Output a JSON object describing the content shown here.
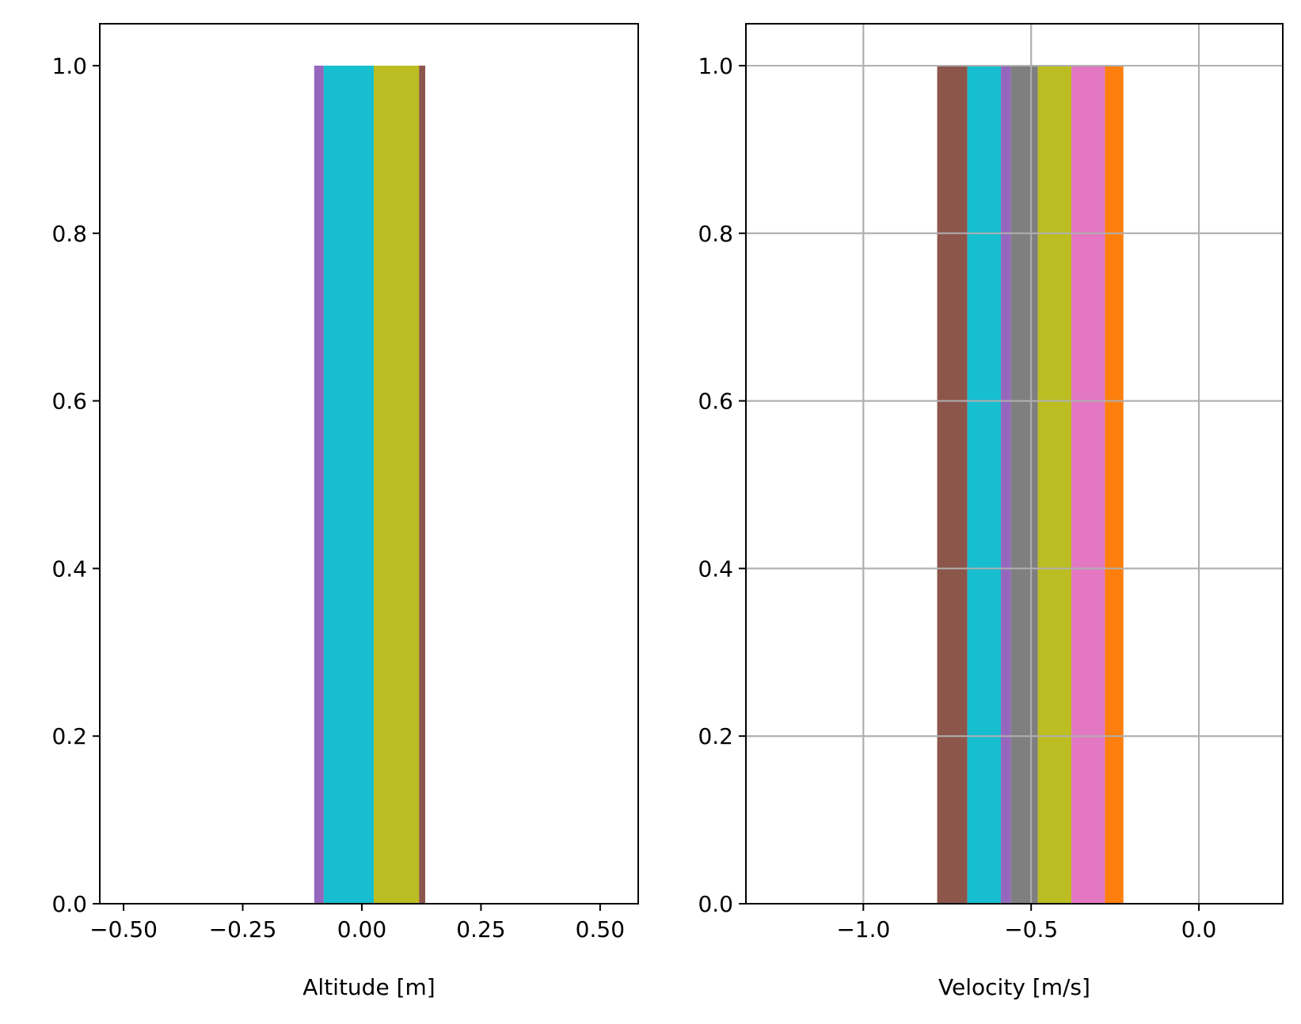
{
  "chart_data": [
    {
      "type": "bar",
      "xlabel": "Altitude [m]",
      "ylabel": "",
      "xlim": [
        -0.55,
        0.58
      ],
      "ylim": [
        0,
        1.05
      ],
      "grid": false,
      "xticks": [
        -0.5,
        -0.25,
        0.0,
        0.25,
        0.5
      ],
      "xtick_labels": [
        "−0.50",
        "−0.25",
        "0.00",
        "0.25",
        "0.50"
      ],
      "yticks": [
        0.0,
        0.2,
        0.4,
        0.6,
        0.8,
        1.0
      ],
      "ytick_labels": [
        "0.0",
        "0.2",
        "0.4",
        "0.6",
        "0.8",
        "1.0"
      ],
      "bars": [
        {
          "x0": -0.1,
          "x1": -0.08,
          "height": 1.0,
          "color": "#9467bd"
        },
        {
          "x0": -0.08,
          "x1": 0.025,
          "height": 1.0,
          "color": "#17becf"
        },
        {
          "x0": 0.025,
          "x1": 0.12,
          "height": 1.0,
          "color": "#bcbd22"
        },
        {
          "x0": 0.12,
          "x1": 0.133,
          "height": 1.0,
          "color": "#8c564b"
        }
      ]
    },
    {
      "type": "bar",
      "xlabel": "Velocity [m/s]",
      "ylabel": "",
      "xlim": [
        -1.35,
        0.25
      ],
      "ylim": [
        0,
        1.05
      ],
      "grid": true,
      "xticks": [
        -1.0,
        -0.5,
        0.0
      ],
      "xtick_labels": [
        "−1.0",
        "−0.5",
        "0.0"
      ],
      "yticks": [
        0.0,
        0.2,
        0.4,
        0.6,
        0.8,
        1.0
      ],
      "ytick_labels": [
        "0.0",
        "0.2",
        "0.4",
        "0.6",
        "0.8",
        "1.0"
      ],
      "bars": [
        {
          "x0": -0.78,
          "x1": -0.69,
          "height": 1.0,
          "color": "#8c564b"
        },
        {
          "x0": -0.69,
          "x1": -0.59,
          "height": 1.0,
          "color": "#17becf"
        },
        {
          "x0": -0.59,
          "x1": -0.56,
          "height": 1.0,
          "color": "#9467bd"
        },
        {
          "x0": -0.56,
          "x1": -0.48,
          "height": 1.0,
          "color": "#7f7f7f"
        },
        {
          "x0": -0.48,
          "x1": -0.38,
          "height": 1.0,
          "color": "#bcbd22"
        },
        {
          "x0": -0.38,
          "x1": -0.28,
          "height": 1.0,
          "color": "#e377c2"
        },
        {
          "x0": -0.28,
          "x1": -0.225,
          "height": 1.0,
          "color": "#ff7f0e"
        }
      ]
    }
  ]
}
